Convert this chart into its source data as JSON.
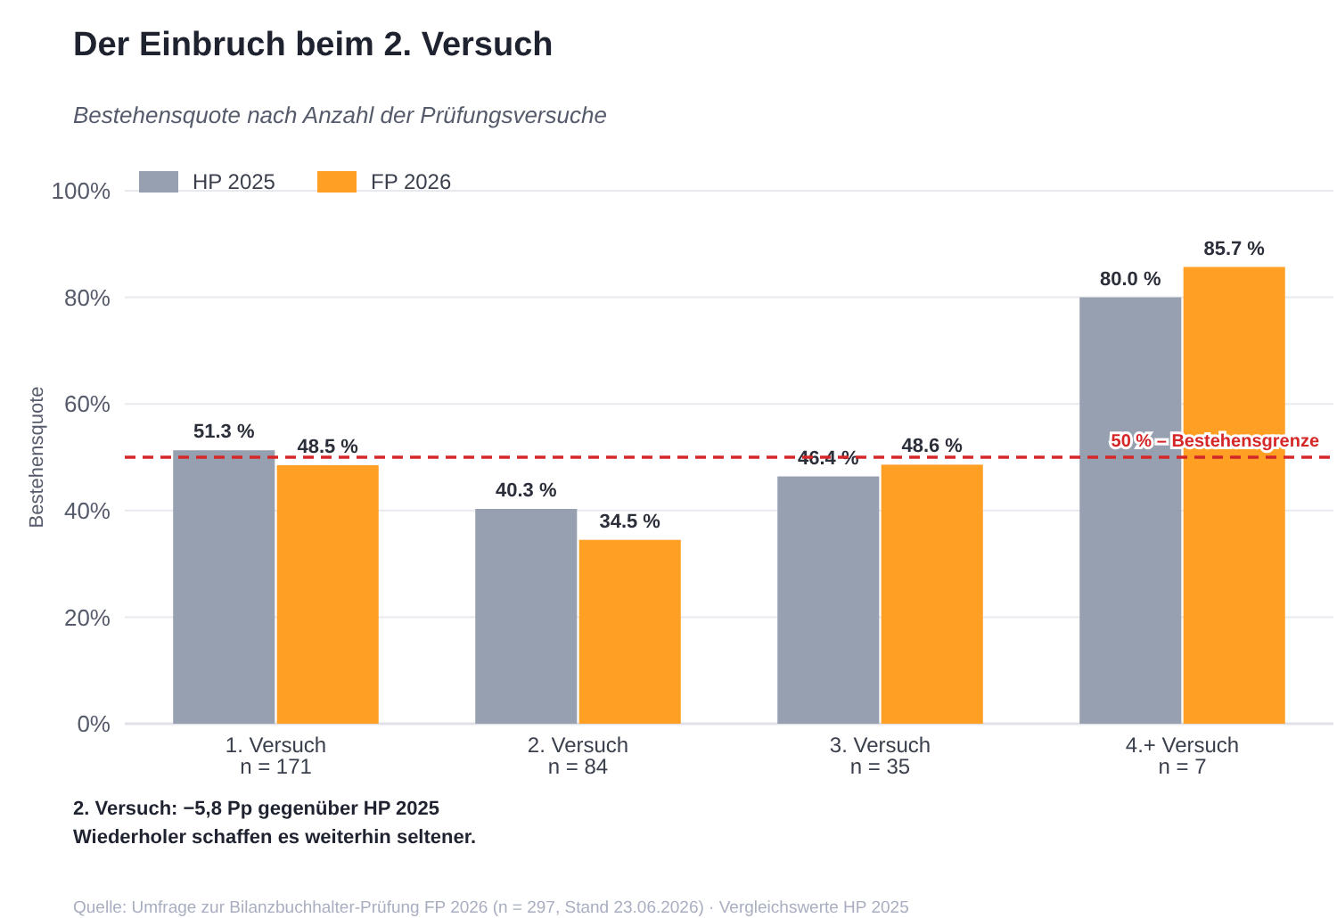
{
  "chart_data": {
    "type": "bar",
    "title": "Der Einbruch beim 2. Versuch",
    "subtitle": "Bestehensquote nach Anzahl der Prüfungsversuche",
    "ylabel": "Bestehensquote",
    "categories": [
      "1. Versuch\nn = 171",
      "2. Versuch\nn = 84",
      "3. Versuch\nn = 35",
      "4.+ Versuch\nn = 7"
    ],
    "series": [
      {
        "name": "HP 2025",
        "color": "#97a0b0",
        "values": [
          51.3,
          40.3,
          46.4,
          80.0
        ],
        "value_labels": [
          "51.3 %",
          "40.3 %",
          "46.4 %",
          "80.0 %"
        ]
      },
      {
        "name": "FP 2026",
        "color": "#ff9f24",
        "values": [
          48.5,
          34.5,
          48.6,
          85.7
        ],
        "value_labels": [
          "48.5 %",
          "34.5 %",
          "48.6 %",
          "85.7 %"
        ]
      }
    ],
    "ylim": [
      0,
      100
    ],
    "yticks": [
      {
        "value": 0,
        "label": "0%"
      },
      {
        "value": 20,
        "label": "20%"
      },
      {
        "value": 40,
        "label": "40%"
      },
      {
        "value": 60,
        "label": "60%"
      },
      {
        "value": 80,
        "label": "80%"
      },
      {
        "value": 100,
        "label": "100%"
      }
    ],
    "grid": "y",
    "legend": "top left",
    "ref_lines": [
      {
        "axis": "y",
        "value": 50,
        "label": "50 % – Bestehensgrenze",
        "color": "#d62728",
        "line_style": "dashed"
      }
    ],
    "annotations": [
      "2. Versuch: −5,8 Pp gegenüber HP 2025",
      "Wiederholer schaffen es weiterhin seltener.",
      "Quelle: Umfrage zur Bilanzbuchhalter-Prüfung FP 2026 (n = 297, Stand 23.06.2026) · Vergleichswerte HP 2025"
    ]
  }
}
